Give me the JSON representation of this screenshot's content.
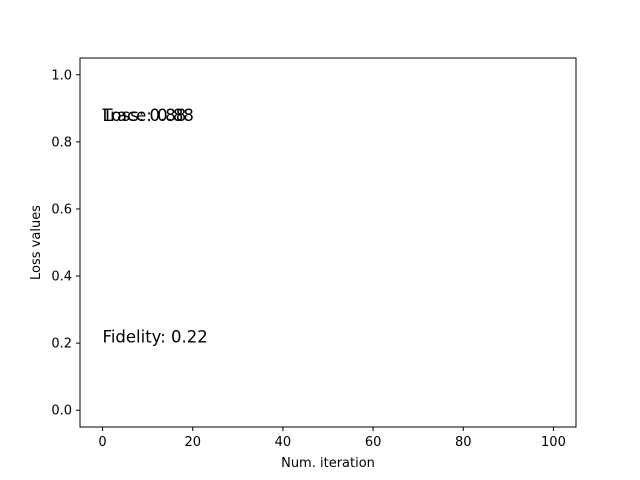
{
  "chart_data": {
    "type": "line",
    "title": "",
    "xlabel": "Num. iteration",
    "ylabel": "Loss values",
    "xlim": [
      -5,
      105
    ],
    "ylim": [
      -0.05,
      1.05
    ],
    "xticks": [
      0,
      20,
      40,
      60,
      80,
      100
    ],
    "yticks": [
      0.0,
      0.2,
      0.4,
      0.6,
      0.8,
      1.0
    ],
    "xtick_labels": [
      "0",
      "20",
      "40",
      "60",
      "80",
      "100"
    ],
    "ytick_labels": [
      "0.0",
      "0.2",
      "0.4",
      "0.6",
      "0.8",
      "1.0"
    ],
    "grid": false,
    "legend": "none",
    "series": [],
    "annotations": [
      {
        "id": "trace",
        "text": "Trace: 0.88",
        "x": 0,
        "y": 0.88
      },
      {
        "id": "loss",
        "text": "Loss: 0.88",
        "x": 0,
        "y": 0.88
      },
      {
        "id": "fidelity",
        "text": "Fidelity: 0.22",
        "x": 0,
        "y": 0.22
      }
    ]
  }
}
